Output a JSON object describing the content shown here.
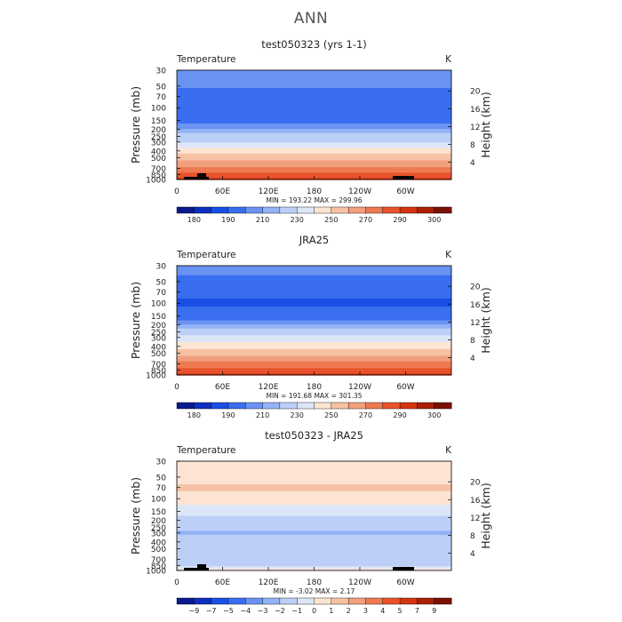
{
  "page": {
    "title": "ANN"
  },
  "colors": {
    "temp_palette": [
      "#0a1a8c",
      "#0d2fbf",
      "#1a4fe6",
      "#3a6ef0",
      "#6a93f2",
      "#93b3f5",
      "#bcd0f7",
      "#dde6f7",
      "#fde4d2",
      "#f7c1a4",
      "#f29f7e",
      "#ee7a52",
      "#e8532c",
      "#d43410",
      "#aa1f06",
      "#7a1004"
    ],
    "diff_palette": [
      "#0a1a8c",
      "#0d2fbf",
      "#1a4fe6",
      "#3a6ef0",
      "#6a93f2",
      "#93b3f5",
      "#bcd0f7",
      "#dde6f7",
      "#fde4d2",
      "#f7c1a4",
      "#f29f7e",
      "#ee7a52",
      "#e8532c",
      "#d43410",
      "#aa1f06",
      "#7a1004"
    ],
    "terrain": "#000000"
  },
  "chart_data": [
    {
      "type": "heatmap",
      "title": "test050323 (yrs 1-1)",
      "variable": "Temperature",
      "units": "K",
      "ylabel": "Pressure (mb)",
      "ylabel_right": "Height (km)",
      "xticks": [
        "0",
        "60E",
        "120E",
        "180",
        "120W",
        "60W"
      ],
      "yticks": [
        "30",
        "50",
        "70",
        "100",
        "150",
        "200",
        "250",
        "300",
        "400",
        "500",
        "700",
        "850",
        "1000"
      ],
      "yticks_right": [
        "20",
        "16",
        "12",
        "8",
        "4"
      ],
      "min_max_text": "MIN = 193.22   MAX = 299.96",
      "colorbar_labels": [
        "180",
        "190",
        "210",
        "230",
        "250",
        "270",
        "290",
        "300"
      ],
      "profile": [
        {
          "p": 30,
          "v": 215
        },
        {
          "p": 50,
          "v": 211
        },
        {
          "p": 70,
          "v": 205
        },
        {
          "p": 100,
          "v": 200
        },
        {
          "p": 150,
          "v": 206
        },
        {
          "p": 200,
          "v": 216
        },
        {
          "p": 250,
          "v": 224
        },
        {
          "p": 300,
          "v": 230
        },
        {
          "p": 400,
          "v": 245
        },
        {
          "p": 500,
          "v": 256
        },
        {
          "p": 700,
          "v": 272
        },
        {
          "p": 850,
          "v": 283
        },
        {
          "p": 1000,
          "v": 293
        }
      ],
      "topography": true
    },
    {
      "type": "heatmap",
      "title": "JRA25",
      "variable": "Temperature",
      "units": "K",
      "ylabel": "Pressure (mb)",
      "ylabel_right": "Height (km)",
      "xticks": [
        "0",
        "60E",
        "120E",
        "180",
        "120W",
        "60W"
      ],
      "yticks": [
        "30",
        "50",
        "70",
        "100",
        "150",
        "200",
        "250",
        "300",
        "400",
        "500",
        "700",
        "850",
        "1000"
      ],
      "yticks_right": [
        "20",
        "16",
        "12",
        "8",
        "4"
      ],
      "min_max_text": "MIN = 191.68   MAX = 301.35",
      "colorbar_labels": [
        "180",
        "190",
        "210",
        "230",
        "250",
        "270",
        "290",
        "300"
      ],
      "profile": [
        {
          "p": 30,
          "v": 213
        },
        {
          "p": 50,
          "v": 208
        },
        {
          "p": 70,
          "v": 203
        },
        {
          "p": 100,
          "v": 198
        },
        {
          "p": 150,
          "v": 205
        },
        {
          "p": 200,
          "v": 215
        },
        {
          "p": 250,
          "v": 224
        },
        {
          "p": 300,
          "v": 232
        },
        {
          "p": 400,
          "v": 246
        },
        {
          "p": 500,
          "v": 257
        },
        {
          "p": 700,
          "v": 273
        },
        {
          "p": 850,
          "v": 283
        },
        {
          "p": 1000,
          "v": 294
        }
      ],
      "topography": false
    },
    {
      "type": "heatmap",
      "title": "test050323 - JRA25",
      "variable": "Temperature",
      "units": "K",
      "ylabel": "Pressure (mb)",
      "ylabel_right": "Height (km)",
      "xticks": [
        "0",
        "60E",
        "120E",
        "180",
        "120W",
        "60W"
      ],
      "yticks": [
        "30",
        "50",
        "70",
        "100",
        "150",
        "200",
        "250",
        "300",
        "400",
        "500",
        "700",
        "850",
        "1000"
      ],
      "yticks_right": [
        "20",
        "16",
        "12",
        "8",
        "4"
      ],
      "min_max_text": "MIN =  -3.02   MAX =    2.17",
      "colorbar_labels": [
        "−9",
        "−7",
        "−5",
        "−4",
        "−3",
        "−2",
        "−1",
        "0",
        "1",
        "2",
        "3",
        "4",
        "5",
        "7",
        "9"
      ],
      "profile": [
        {
          "p": 30,
          "v": 0.5
        },
        {
          "p": 50,
          "v": 0.5
        },
        {
          "p": 70,
          "v": 1.2
        },
        {
          "p": 100,
          "v": 0.5
        },
        {
          "p": 150,
          "v": -0.5
        },
        {
          "p": 200,
          "v": -1.5
        },
        {
          "p": 250,
          "v": -1.5
        },
        {
          "p": 300,
          "v": -2.2
        },
        {
          "p": 400,
          "v": -1.5
        },
        {
          "p": 500,
          "v": -1.5
        },
        {
          "p": 700,
          "v": -1.5
        },
        {
          "p": 850,
          "v": -1.5
        },
        {
          "p": 1000,
          "v": 0.5
        }
      ],
      "topography": true
    }
  ]
}
